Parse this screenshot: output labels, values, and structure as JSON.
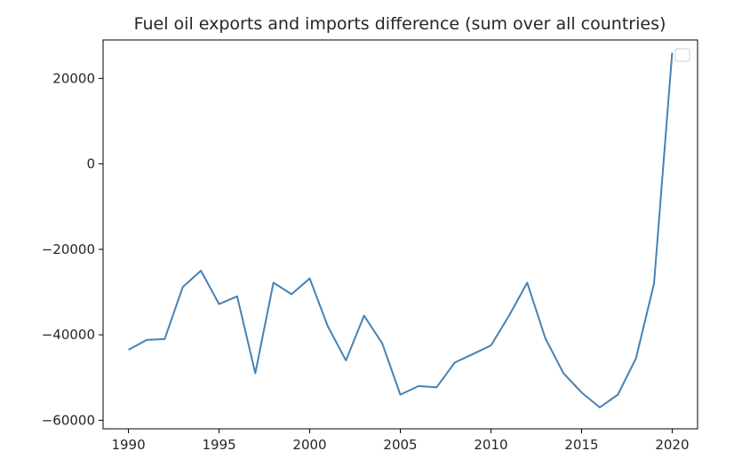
{
  "chart_data": {
    "type": "line",
    "title": "Fuel oil exports and imports difference (sum over all countries)",
    "xlabel": "",
    "ylabel": "",
    "xlim": [
      1988.6,
      2021.4
    ],
    "ylim": [
      -62000,
      29000
    ],
    "grid": false,
    "legend": "top-right",
    "x_ticks": [
      "1990",
      "1995",
      "2000",
      "2005",
      "2010",
      "2015",
      "2020"
    ],
    "y_ticks": [
      "-60000",
      "-40000",
      "-20000",
      "0",
      "20000"
    ],
    "series": [
      {
        "color": "#4682b4",
        "x": [
          1990,
          1991,
          1992,
          1993,
          1994,
          1995,
          1996,
          1997,
          1998,
          1999,
          2000,
          2001,
          2002,
          2003,
          2004,
          2005,
          2006,
          2007,
          2008,
          2009,
          2010,
          2011,
          2012,
          2013,
          2014,
          2015,
          2016,
          2017,
          2018,
          2019,
          2020
        ],
        "y": [
          -43500,
          -41200,
          -41000,
          -28800,
          -25000,
          -32800,
          -31000,
          -49000,
          -27800,
          -30500,
          -26800,
          -38000,
          -46000,
          -35500,
          -42000,
          -54000,
          -52000,
          -52300,
          -46500,
          -44500,
          -42500,
          -35500,
          -27800,
          -40800,
          -49000,
          -53500,
          -57000,
          -54000,
          -45500,
          -28000,
          26000
        ]
      }
    ]
  }
}
